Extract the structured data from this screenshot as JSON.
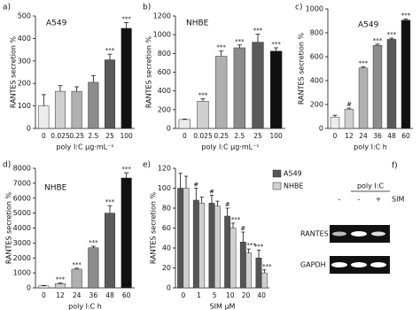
{
  "chart_data": [
    {
      "type": "bar",
      "panel": "a)",
      "title": "A549",
      "ylabel": "RANTES secretion %",
      "xlabel": "poly I:C µg·mL⁻¹",
      "categories": [
        "0",
        "0.025",
        "0.25",
        "2.5",
        "25",
        "100"
      ],
      "values": [
        100,
        165,
        165,
        205,
        305,
        445
      ],
      "errors": [
        50,
        25,
        20,
        30,
        25,
        25
      ],
      "annotations": [
        null,
        null,
        null,
        null,
        "***",
        "***"
      ],
      "colors": [
        "#ececec",
        "#cfcfcf",
        "#b0b0b0",
        "#8c8c8c",
        "#5a5a5a",
        "#111111"
      ],
      "ylim": [
        0,
        500
      ],
      "yticks": [
        0,
        100,
        200,
        300,
        400,
        500
      ]
    },
    {
      "type": "bar",
      "panel": "b)",
      "title": "NHBE",
      "ylabel": "RANTES secretion %",
      "xlabel": "poly I:C µg·mL⁻¹",
      "categories": [
        "0",
        "0.025",
        "0.25",
        "2.5",
        "25",
        "100"
      ],
      "values": [
        95,
        290,
        770,
        860,
        920,
        825
      ],
      "errors": [
        5,
        25,
        55,
        30,
        85,
        35
      ],
      "annotations": [
        null,
        "***",
        "***",
        "***",
        "***",
        "***"
      ],
      "colors": [
        "#ececec",
        "#cfcfcf",
        "#b0b0b0",
        "#8c8c8c",
        "#5a5a5a",
        "#111111"
      ],
      "ylim": [
        0,
        1200
      ],
      "yticks": [
        0,
        200,
        400,
        600,
        800,
        1000,
        1200
      ]
    },
    {
      "type": "bar",
      "panel": "c)",
      "title": "A549",
      "ylabel": "RANTES secretion %",
      "xlabel": "poly I:C h",
      "categories": [
        "0",
        "12",
        "24",
        "36",
        "48",
        "60"
      ],
      "values": [
        95,
        160,
        505,
        695,
        745,
        905
      ],
      "errors": [
        15,
        10,
        10,
        10,
        10,
        10
      ],
      "annotations": [
        null,
        "#",
        "***",
        "***",
        "***",
        "***"
      ],
      "colors": [
        "#ececec",
        "#cfcfcf",
        "#b0b0b0",
        "#8c8c8c",
        "#5a5a5a",
        "#111111"
      ],
      "ylim": [
        0,
        1000
      ],
      "yticks": [
        0,
        200,
        400,
        600,
        800,
        1000
      ]
    },
    {
      "type": "bar",
      "panel": "d)",
      "title": "NHBE",
      "ylabel": "RANTES secretion %",
      "xlabel": "poly I:C h",
      "categories": [
        "0",
        "12",
        "24",
        "36",
        "48",
        "60"
      ],
      "values": [
        130,
        280,
        1250,
        2680,
        5000,
        7350
      ],
      "errors": [
        30,
        40,
        60,
        100,
        500,
        350
      ],
      "annotations": [
        null,
        "***",
        "***",
        "***",
        "***",
        "***"
      ],
      "colors": [
        "#ececec",
        "#cfcfcf",
        "#b0b0b0",
        "#8c8c8c",
        "#5a5a5a",
        "#111111"
      ],
      "ylim": [
        0,
        8000
      ],
      "yticks": [
        0,
        1000,
        2000,
        3000,
        4000,
        5000,
        6000,
        7000,
        8000
      ]
    },
    {
      "type": "grouped-bar",
      "panel": "e)",
      "ylabel": "RANTES secretion %",
      "xlabel": "SIM µM",
      "categories": [
        "0",
        "1",
        "5",
        "10",
        "20",
        "40"
      ],
      "series": [
        {
          "name": "A549",
          "color": "#555555",
          "values": [
            100,
            88,
            85,
            72,
            46,
            30
          ],
          "errors": [
            15,
            12,
            8,
            8,
            10,
            8
          ],
          "annotations": [
            null,
            "#",
            "#",
            "#",
            "#",
            "***"
          ]
        },
        {
          "name": "NHBE",
          "color": "#d0d0d0",
          "values": [
            100,
            85,
            82,
            60,
            35,
            15
          ],
          "errors": [
            12,
            6,
            5,
            5,
            4,
            3
          ],
          "annotations": [
            null,
            null,
            null,
            "***",
            "***",
            "***"
          ]
        }
      ],
      "ylim": [
        0,
        120
      ],
      "yticks": [
        0,
        20,
        40,
        60,
        80,
        100,
        120
      ]
    }
  ],
  "gel": {
    "panel": "f)",
    "header": "poly I:C",
    "treatment_label": "SIM",
    "treatment": [
      "-",
      "-",
      "+"
    ],
    "rows": [
      "RANTES",
      "GAPDH"
    ]
  }
}
